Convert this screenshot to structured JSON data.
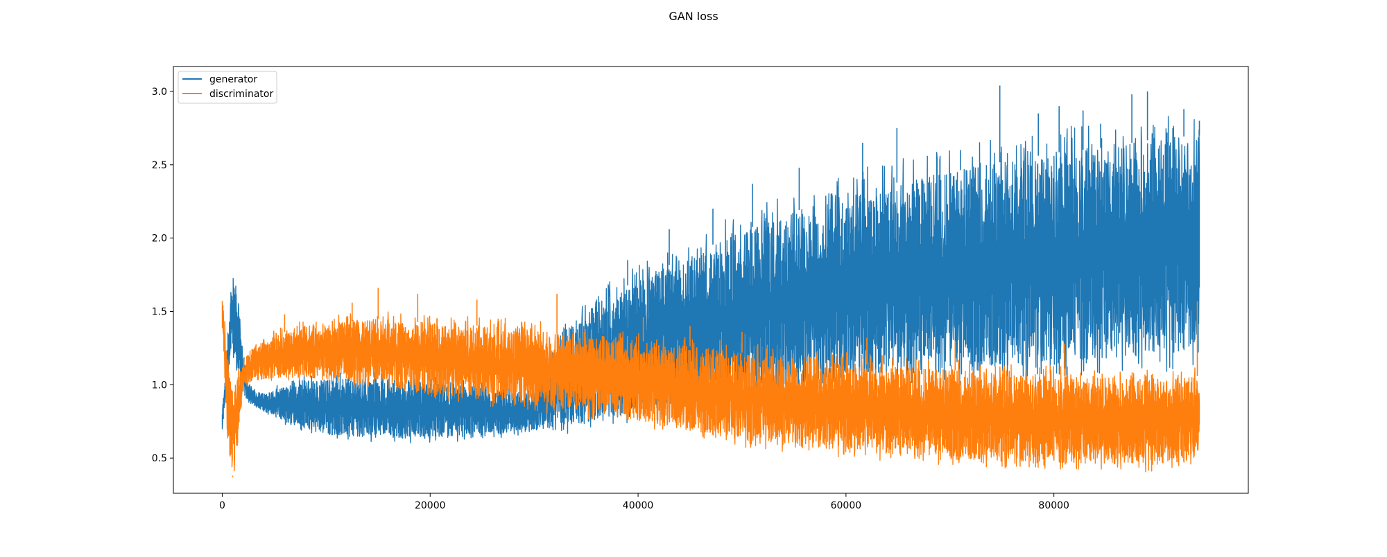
{
  "figure": {
    "title": "GAN loss"
  },
  "chart_data": {
    "type": "line",
    "title": "GAN loss",
    "xlabel": "",
    "ylabel": "",
    "xlim": [
      -4700,
      98700
    ],
    "ylim": [
      0.26,
      3.17
    ],
    "x_ticks": [
      0,
      20000,
      40000,
      60000,
      80000
    ],
    "y_ticks": [
      0.5,
      1.0,
      1.5,
      2.0,
      2.5,
      3.0
    ],
    "x_tick_labels": [
      "0",
      "20000",
      "40000",
      "60000",
      "80000"
    ],
    "y_tick_labels": [
      "0.5",
      "1.0",
      "1.5",
      "2.0",
      "2.5",
      "3.0"
    ],
    "grid": false,
    "legend_position": "upper-left",
    "series": [
      {
        "name": "generator",
        "color": "#1f77b4",
        "x": [
          0,
          500,
          1000,
          1500,
          2000,
          2500,
          3000,
          4000,
          6000,
          8000,
          10000,
          15000,
          20000,
          25000,
          30000,
          33000,
          36000,
          40000,
          45000,
          50000,
          55000,
          60000,
          65000,
          70000,
          75000,
          80000,
          85000,
          90000,
          94000
        ],
        "upper": [
          0.82,
          1.3,
          1.8,
          1.6,
          1.2,
          1.02,
          0.96,
          0.94,
          0.99,
          1.03,
          1.04,
          1.04,
          1.01,
          0.99,
          0.94,
          1.42,
          1.55,
          1.72,
          1.88,
          2.05,
          2.18,
          2.3,
          2.38,
          2.45,
          2.52,
          2.58,
          2.62,
          2.68,
          2.7
        ],
        "lower": [
          0.68,
          1.02,
          1.2,
          1.1,
          0.92,
          0.88,
          0.86,
          0.82,
          0.75,
          0.7,
          0.66,
          0.64,
          0.63,
          0.65,
          0.68,
          0.72,
          0.76,
          0.82,
          0.88,
          0.93,
          0.98,
          1.02,
          1.05,
          1.1,
          1.13,
          1.16,
          1.18,
          1.2,
          1.22
        ],
        "peaks": [
          [
            74800,
            3.04
          ],
          [
            89000,
            3.0
          ],
          [
            87500,
            2.98
          ],
          [
            92500,
            2.88
          ],
          [
            80500,
            2.9
          ],
          [
            78500,
            2.85
          ],
          [
            82800,
            2.87
          ],
          [
            61600,
            2.65
          ],
          [
            64900,
            2.75
          ],
          [
            71000,
            2.6
          ],
          [
            55500,
            2.48
          ],
          [
            51000,
            2.37
          ],
          [
            47200,
            2.2
          ],
          [
            43000,
            2.06
          ],
          [
            39000,
            1.85
          ],
          [
            37200,
            1.65
          ],
          [
            84500,
            2.78
          ],
          [
            94000,
            2.8
          ]
        ]
      },
      {
        "name": "discriminator",
        "color": "#ff7f0e",
        "x": [
          0,
          500,
          1000,
          1500,
          2000,
          2500,
          3000,
          4000,
          6000,
          8000,
          10000,
          15000,
          20000,
          25000,
          30000,
          33000,
          36000,
          40000,
          45000,
          50000,
          55000,
          60000,
          65000,
          70000,
          75000,
          80000,
          85000,
          90000,
          94000
        ],
        "upper": [
          1.62,
          1.2,
          0.95,
          1.05,
          1.18,
          1.22,
          1.26,
          1.32,
          1.36,
          1.4,
          1.42,
          1.45,
          1.42,
          1.4,
          1.38,
          1.34,
          1.32,
          1.3,
          1.26,
          1.22,
          1.18,
          1.15,
          1.12,
          1.1,
          1.08,
          1.06,
          1.05,
          1.04,
          1.06
        ],
        "lower": [
          1.4,
          0.65,
          0.37,
          0.6,
          0.95,
          1.0,
          1.02,
          1.04,
          1.05,
          1.05,
          1.03,
          1.0,
          0.94,
          0.9,
          0.86,
          0.83,
          0.8,
          0.75,
          0.68,
          0.62,
          0.58,
          0.55,
          0.52,
          0.5,
          0.48,
          0.47,
          0.46,
          0.45,
          0.5
        ],
        "peaks": [
          [
            15000,
            1.66
          ],
          [
            32200,
            1.62
          ],
          [
            18800,
            1.62
          ],
          [
            24500,
            1.58
          ],
          [
            12500,
            1.56
          ],
          [
            40500,
            1.46
          ],
          [
            45000,
            1.4
          ],
          [
            50000,
            1.36
          ],
          [
            62000,
            1.32
          ],
          [
            70500,
            1.3
          ],
          [
            81000,
            1.28
          ],
          [
            93800,
            1.57
          ],
          [
            6000,
            1.48
          ],
          [
            1000,
            0.38
          ]
        ]
      }
    ]
  }
}
